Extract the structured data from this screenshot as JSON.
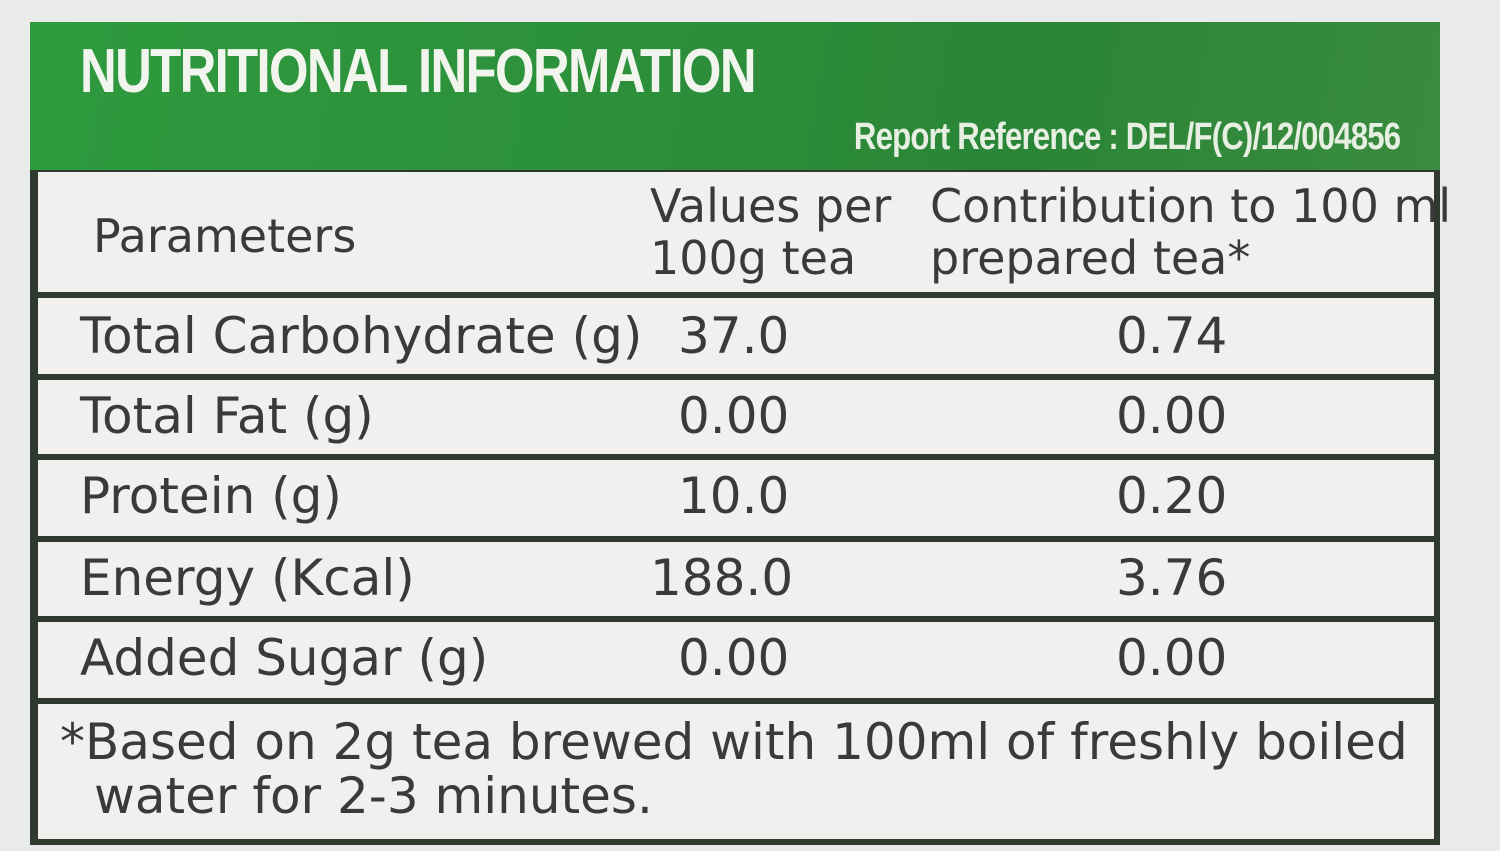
{
  "header": {
    "title": "NUTRITIONAL INFORMATION",
    "reference": "Report Reference : DEL/F(C)/12/004856"
  },
  "table": {
    "columns": {
      "parameters": "Parameters",
      "per100g_line1": "Values per",
      "per100g_line2": "100g tea",
      "contrib_line1": "Contribution to 100 ml",
      "contrib_line2": "prepared tea*"
    },
    "rows": [
      {
        "parameter": "Total Carbohydrate (g)",
        "per100g": "37.0",
        "contribution": "0.74"
      },
      {
        "parameter": "Total Fat (g)",
        "per100g": "0.00",
        "contribution": "0.00"
      },
      {
        "parameter": "Protein (g)",
        "per100g": "10.0",
        "contribution": "0.20"
      },
      {
        "parameter": "Energy (Kcal)",
        "per100g": "188.0",
        "contribution": "3.76"
      },
      {
        "parameter": "Added Sugar (g)",
        "per100g": "0.00",
        "contribution": "0.00"
      }
    ]
  },
  "footnote": {
    "line1": "*Based on 2g tea brewed with 100ml of freshly boiled",
    "line2": "water for 2-3 minutes."
  },
  "colors": {
    "header_green": "#2c8f3a",
    "border": "#2f3a2f",
    "cell_background": "#f0f1ef",
    "text": "#3a3a3a"
  }
}
